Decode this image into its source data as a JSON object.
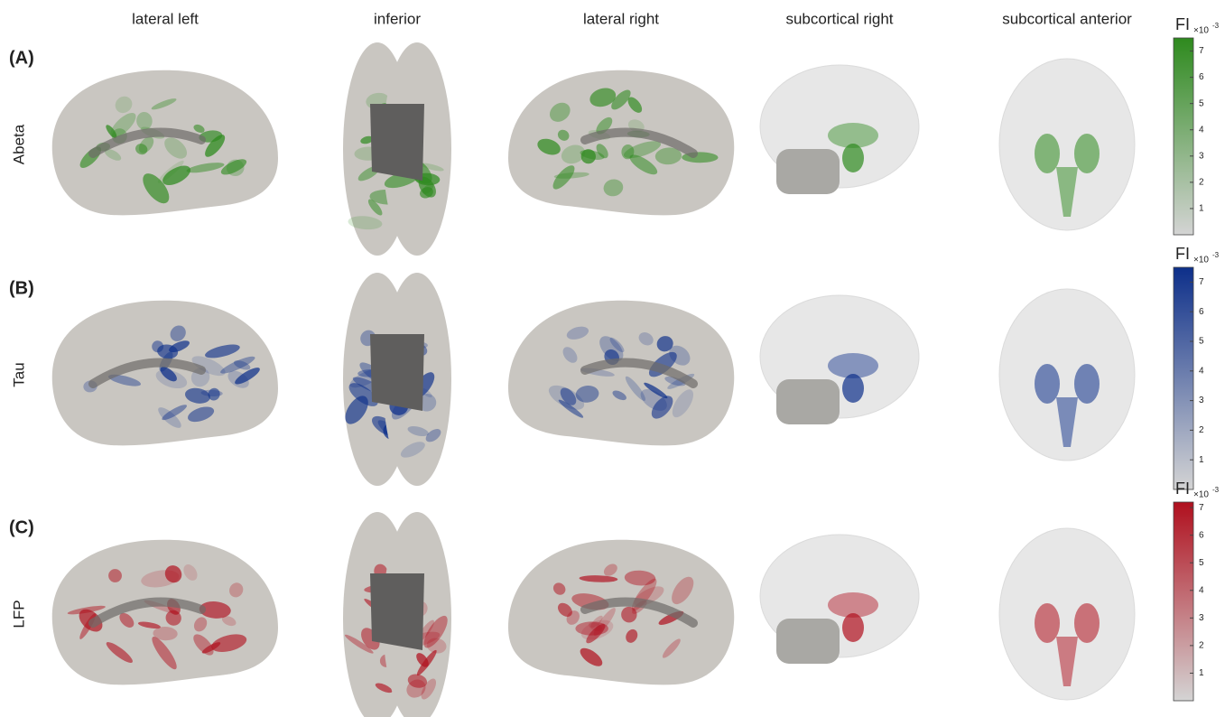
{
  "columns": [
    "lateral left",
    "inferior",
    "lateral right",
    "subcortical right",
    "subcortical anterior"
  ],
  "rows": [
    {
      "panel": "(A)",
      "label": "Abeta",
      "color": "#2e8a1e",
      "colorbar": {
        "title": "FI",
        "exponent": "×10",
        "power": "-3",
        "lim": [
          0,
          7.5
        ],
        "ticks": [
          1,
          2,
          3,
          4,
          5,
          6,
          7
        ]
      }
    },
    {
      "panel": "(B)",
      "label": "Tau",
      "color": "#0d2f8a",
      "colorbar": {
        "title": "FI",
        "exponent": "×10",
        "power": "-3",
        "lim": [
          0,
          7.5
        ],
        "ticks": [
          1,
          2,
          3,
          4,
          5,
          6,
          7
        ]
      }
    },
    {
      "panel": "(C)",
      "label": "LFP",
      "color": "#b0101e",
      "colorbar": {
        "title": "FI",
        "exponent": "×10",
        "power": "-3",
        "lim": [
          0,
          7.2
        ],
        "ticks": [
          1,
          2,
          3,
          4,
          5,
          6,
          7
        ]
      }
    }
  ]
}
